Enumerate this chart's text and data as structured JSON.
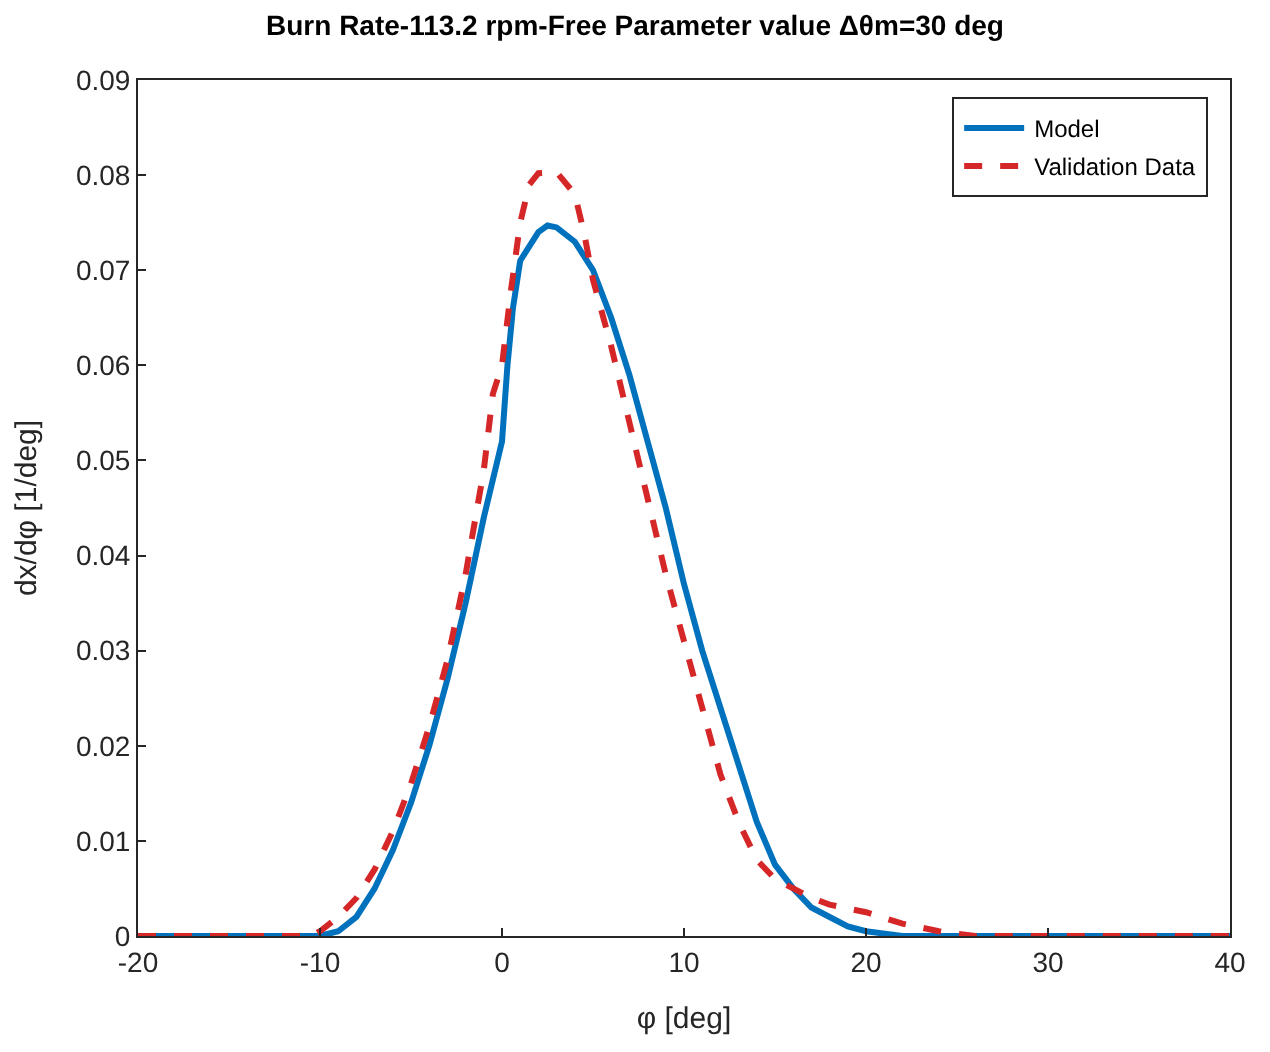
{
  "chart_data": {
    "type": "line",
    "title": "Burn Rate-113.2 rpm-Free Parameter value Δθm=30 deg",
    "xlabel": "φ [deg]",
    "ylabel": "dx/dφ [1/deg]",
    "xlim": [
      -20,
      40
    ],
    "ylim": [
      0,
      0.09
    ],
    "xticks": [
      -20,
      -10,
      0,
      10,
      20,
      30,
      40
    ],
    "yticks": [
      0,
      0.01,
      0.02,
      0.03,
      0.04,
      0.05,
      0.06,
      0.07,
      0.08,
      0.09
    ],
    "legend": "top right",
    "series": [
      {
        "name": "Model",
        "color": "#0072bd",
        "line_style": "solid",
        "x": [
          -20,
          -10,
          -9,
          -8,
          -7,
          -6,
          -5,
          -4,
          -3,
          -2,
          -1,
          0,
          0.3,
          0.6,
          1,
          2,
          2.5,
          3,
          4,
          5,
          6,
          7,
          8,
          9,
          10,
          11,
          12,
          13,
          14,
          15,
          16,
          17,
          18,
          19,
          20,
          22,
          40
        ],
        "values": [
          0,
          0,
          0.0005,
          0.002,
          0.005,
          0.009,
          0.014,
          0.02,
          0.027,
          0.035,
          0.044,
          0.052,
          0.06,
          0.066,
          0.071,
          0.074,
          0.0747,
          0.0745,
          0.073,
          0.07,
          0.065,
          0.059,
          0.052,
          0.045,
          0.037,
          0.03,
          0.024,
          0.018,
          0.012,
          0.0075,
          0.005,
          0.003,
          0.002,
          0.001,
          0.0005,
          0,
          0
        ]
      },
      {
        "name": "Validation Data",
        "color": "#d62728",
        "line_style": "dashed",
        "x": [
          -20,
          -10.5,
          -10,
          -9,
          -8,
          -7,
          -6,
          -5,
          -4,
          -3,
          -2,
          -1,
          -0.5,
          0,
          0.5,
          1,
          1.5,
          2,
          3,
          4,
          4.5,
          5,
          6,
          7,
          8,
          9,
          10,
          11,
          12,
          13,
          14,
          15,
          16,
          17,
          18,
          20,
          22,
          24,
          26,
          40
        ],
        "values": [
          0,
          0,
          0.0005,
          0.002,
          0.004,
          0.007,
          0.011,
          0.016,
          0.022,
          0.029,
          0.038,
          0.049,
          0.057,
          0.06,
          0.068,
          0.075,
          0.079,
          0.0802,
          0.0803,
          0.078,
          0.074,
          0.069,
          0.062,
          0.054,
          0.046,
          0.038,
          0.031,
          0.024,
          0.017,
          0.012,
          0.008,
          0.006,
          0.005,
          0.004,
          0.0033,
          0.0025,
          0.0013,
          0.0005,
          0,
          0
        ]
      }
    ]
  }
}
